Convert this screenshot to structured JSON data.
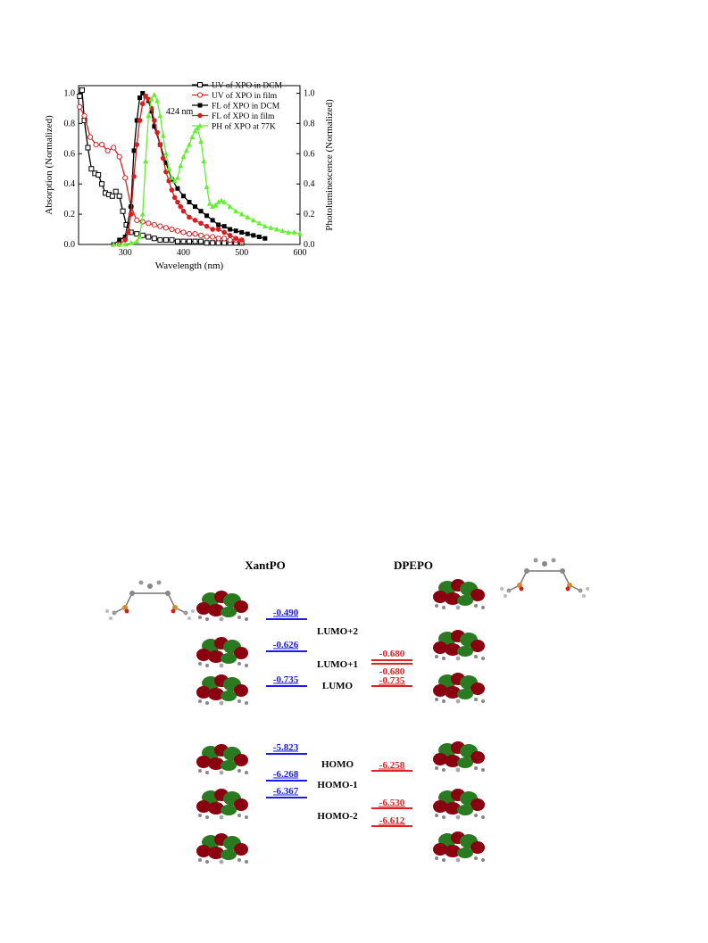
{
  "chart_data": {
    "type": "line",
    "xlabel": "Wavelength (nm)",
    "ylabel_left": "Absorption (Normalized)",
    "ylabel_right": "Photoluminescence (Normalized)",
    "xlim": [
      220,
      600
    ],
    "ylim": [
      0,
      1.05
    ],
    "x_ticks": [
      300,
      400,
      500,
      600
    ],
    "y_ticks_left": [
      0.0,
      0.2,
      0.4,
      0.6,
      0.8,
      1.0
    ],
    "y_ticks_right": [
      0.0,
      0.2,
      0.4,
      0.6,
      0.8,
      1.0
    ],
    "legend_position": "top-right",
    "annotation": "424 nm",
    "annotation_x": 424,
    "annotation_y": 0.78,
    "series": [
      {
        "name": "UV of XPO in DCM",
        "color": "#000000",
        "marker": "open-square",
        "x": [
          222,
          226,
          230,
          236,
          242,
          248,
          254,
          260,
          266,
          272,
          278,
          284,
          290,
          296,
          302,
          310,
          320,
          330,
          340,
          350,
          360,
          370,
          380,
          390,
          400,
          410,
          420,
          430,
          440,
          450,
          460,
          470,
          480,
          490,
          500
        ],
        "y": [
          0.98,
          1.02,
          0.82,
          0.64,
          0.5,
          0.47,
          0.46,
          0.4,
          0.34,
          0.33,
          0.32,
          0.35,
          0.32,
          0.22,
          0.13,
          0.08,
          0.07,
          0.06,
          0.05,
          0.04,
          0.03,
          0.03,
          0.03,
          0.02,
          0.02,
          0.02,
          0.02,
          0.02,
          0.01,
          0.01,
          0.01,
          0.01,
          0.01,
          0.01,
          0.01
        ]
      },
      {
        "name": "UV of XPO in film",
        "color": "#d42020",
        "marker": "open-circle",
        "x": [
          222,
          230,
          240,
          250,
          260,
          270,
          280,
          290,
          300,
          310,
          320,
          330,
          340,
          350,
          360,
          370,
          380,
          390,
          400,
          410,
          420,
          430,
          440,
          450,
          460,
          470,
          480,
          490,
          500
        ],
        "y": [
          0.91,
          0.85,
          0.71,
          0.66,
          0.66,
          0.62,
          0.64,
          0.58,
          0.44,
          0.25,
          0.16,
          0.15,
          0.14,
          0.13,
          0.12,
          0.11,
          0.1,
          0.09,
          0.08,
          0.07,
          0.07,
          0.06,
          0.05,
          0.05,
          0.04,
          0.04,
          0.03,
          0.03,
          0.02
        ]
      },
      {
        "name": "FL of XPO in DCM",
        "color": "#000000",
        "marker": "filled-square",
        "x": [
          280,
          290,
          300,
          310,
          315,
          320,
          325,
          330,
          335,
          340,
          345,
          350,
          360,
          370,
          380,
          390,
          400,
          410,
          420,
          430,
          440,
          450,
          460,
          470,
          480,
          490,
          500,
          510,
          520,
          530,
          540
        ],
        "y": [
          0.0,
          0.03,
          0.05,
          0.25,
          0.62,
          0.82,
          0.97,
          1.0,
          0.98,
          0.95,
          0.88,
          0.78,
          0.66,
          0.54,
          0.43,
          0.37,
          0.32,
          0.28,
          0.25,
          0.22,
          0.19,
          0.16,
          0.13,
          0.12,
          0.1,
          0.09,
          0.08,
          0.07,
          0.06,
          0.05,
          0.04
        ]
      },
      {
        "name": "FL of XPO in film",
        "color": "#d42020",
        "marker": "filled-circle",
        "x": [
          290,
          300,
          305,
          310,
          315,
          320,
          325,
          330,
          335,
          340,
          345,
          350,
          355,
          360,
          365,
          370,
          375,
          380,
          385,
          390,
          395,
          400,
          410,
          420,
          430,
          440,
          450,
          460,
          470,
          480,
          490,
          500
        ],
        "y": [
          0.0,
          0.03,
          0.08,
          0.2,
          0.45,
          0.66,
          0.82,
          0.93,
          0.98,
          0.96,
          0.9,
          0.82,
          0.74,
          0.66,
          0.57,
          0.48,
          0.42,
          0.36,
          0.31,
          0.28,
          0.25,
          0.22,
          0.18,
          0.16,
          0.14,
          0.12,
          0.1,
          0.1,
          0.08,
          0.06,
          0.04,
          0.03
        ]
      },
      {
        "name": "PH of XPO at 77K",
        "color": "#66ee33",
        "marker": "filled-triangle",
        "x": [
          280,
          290,
          300,
          310,
          320,
          325,
          330,
          335,
          340,
          345,
          350,
          355,
          360,
          365,
          370,
          375,
          380,
          385,
          390,
          395,
          400,
          405,
          410,
          415,
          420,
          424,
          430,
          435,
          440,
          445,
          450,
          455,
          460,
          465,
          470,
          480,
          490,
          500,
          510,
          520,
          530,
          540,
          550,
          560,
          570,
          580,
          590,
          600
        ],
        "y": [
          0.0,
          0.0,
          0.0,
          0.01,
          0.02,
          0.05,
          0.2,
          0.55,
          0.85,
          0.96,
          0.99,
          0.95,
          0.85,
          0.72,
          0.6,
          0.5,
          0.44,
          0.42,
          0.44,
          0.52,
          0.58,
          0.62,
          0.66,
          0.71,
          0.75,
          0.77,
          0.68,
          0.55,
          0.38,
          0.27,
          0.25,
          0.26,
          0.28,
          0.29,
          0.28,
          0.25,
          0.22,
          0.2,
          0.18,
          0.16,
          0.14,
          0.12,
          0.11,
          0.1,
          0.09,
          0.08,
          0.08,
          0.07
        ]
      }
    ]
  },
  "diagram": {
    "headers": {
      "left": "XantPO",
      "right": "DPEPO"
    },
    "center_labels": [
      "LUMO+2",
      "LUMO+1",
      "LUMO",
      "HOMO",
      "HOMO-1",
      "HOMO-2"
    ],
    "xantpo_levels": [
      "-0.490",
      "-0.626",
      "-0.735",
      "-5.823",
      "-6.268",
      "-6.367"
    ],
    "dpepo_levels": [
      "-0.680",
      "-0.680",
      "-0.735",
      "-6.258",
      "-6.530",
      "-6.612"
    ],
    "colors": {
      "xantpo": "#1a1aee",
      "dpepo": "#dd2222",
      "orbital_red": "#8b0010",
      "orbital_green": "#2a7a22"
    }
  }
}
